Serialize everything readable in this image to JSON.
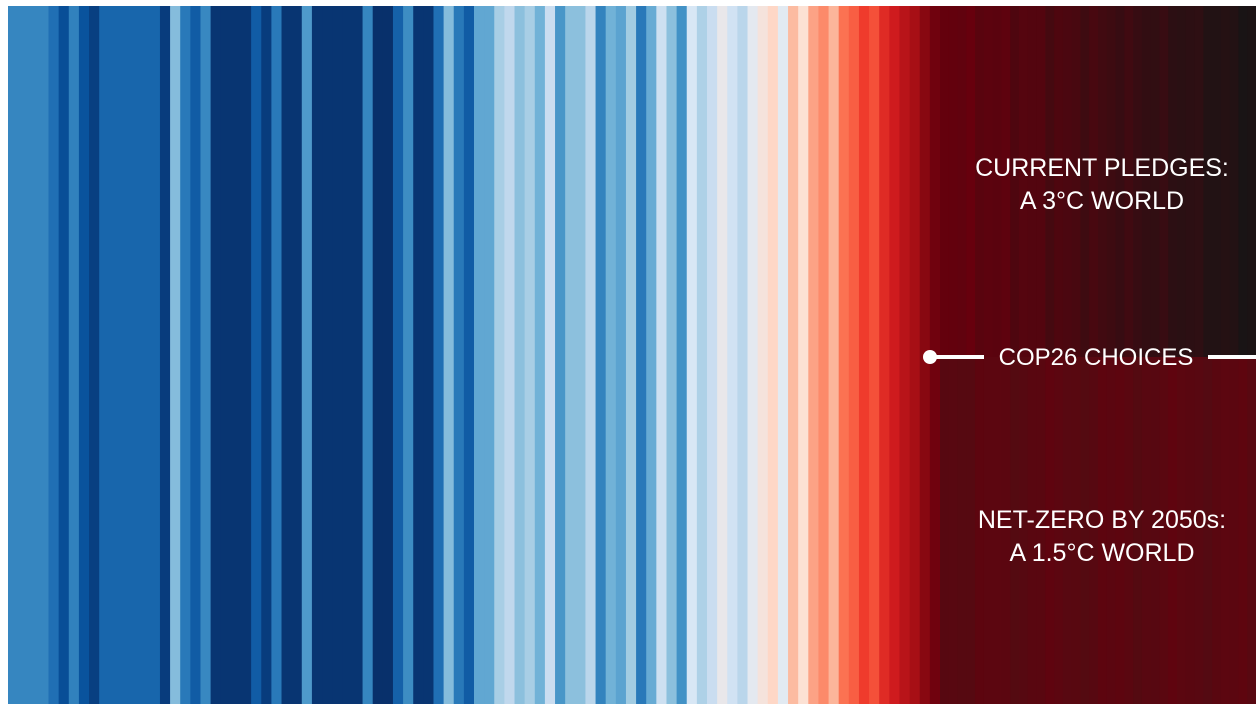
{
  "chart_data": {
    "type": "warming-stripes",
    "title": "",
    "colors": {
      "deep_blue": "#08306b",
      "light_blue": "#c6dbef",
      "light_red": "#fee0d2",
      "dark_red": "#67000d",
      "future_upper": "#151515",
      "future_lower": "#520b12",
      "background": "#ffffff",
      "text": "#ffffff"
    },
    "stripes_pattern": [
      {
        "i": 0.35,
        "n": 4
      },
      {
        "i": 0.26,
        "n": 1
      },
      {
        "i": 0.12,
        "n": 1
      },
      {
        "i": 0.33,
        "n": 1
      },
      {
        "i": 0.14,
        "n": 1
      },
      {
        "i": 0.06,
        "n": 1
      },
      {
        "i": 0.22,
        "n": 6
      },
      {
        "i": 0.05,
        "n": 1
      },
      {
        "i": 0.6,
        "n": 1
      },
      {
        "i": 0.3,
        "n": 1
      },
      {
        "i": 0.18,
        "n": 1
      },
      {
        "i": 0.36,
        "n": 1
      },
      {
        "i": 0.02,
        "n": 4
      },
      {
        "i": 0.18,
        "n": 1
      },
      {
        "i": 0.05,
        "n": 1
      },
      {
        "i": 0.3,
        "n": 1
      },
      {
        "i": 0.02,
        "n": 2
      },
      {
        "i": 0.44,
        "n": 1
      },
      {
        "i": 0.02,
        "n": 5
      },
      {
        "i": 0.35,
        "n": 1
      },
      {
        "i": 0.0,
        "n": 2
      },
      {
        "i": 0.2,
        "n": 1
      },
      {
        "i": 0.38,
        "n": 1
      },
      {
        "i": 0.02,
        "n": 2
      },
      {
        "i": 0.26,
        "n": 1
      },
      {
        "i": 0.6,
        "n": 1
      },
      {
        "i": 0.3,
        "n": 1
      },
      {
        "i": 0.18,
        "n": 1
      },
      {
        "i": 0.5,
        "n": 2
      },
      {
        "i": 0.7,
        "n": 1
      },
      {
        "i": 0.78,
        "n": 1
      },
      {
        "i": 0.62,
        "n": 1
      },
      {
        "i": 0.7,
        "n": 1
      },
      {
        "i": 0.55,
        "n": 1
      },
      {
        "i": 0.82,
        "n": 1
      },
      {
        "i": 0.42,
        "n": 1
      },
      {
        "i": 0.62,
        "n": 2
      },
      {
        "i": 0.76,
        "n": 1
      },
      {
        "i": 0.34,
        "n": 1
      },
      {
        "i": 0.55,
        "n": 1
      },
      {
        "i": 0.48,
        "n": 1
      },
      {
        "i": 0.68,
        "n": 1
      },
      {
        "i": 0.3,
        "n": 1
      },
      {
        "i": 0.52,
        "n": 1
      },
      {
        "i": 0.84,
        "n": 1
      },
      {
        "i": 0.62,
        "n": 1
      },
      {
        "i": 0.4,
        "n": 1
      },
      {
        "i": 0.9,
        "n": 1
      },
      {
        "i": 0.72,
        "n": 1
      },
      {
        "i": 0.82,
        "n": 1
      },
      {
        "i": 0.98,
        "n": 1
      },
      {
        "i": 0.86,
        "n": 1
      },
      {
        "i": 0.76,
        "n": 1
      },
      {
        "i": 0.96,
        "n": 1
      },
      {
        "i": 1.03,
        "n": 1
      },
      {
        "i": 1.1,
        "n": 1
      },
      {
        "i": 0.95,
        "n": 1
      },
      {
        "i": 1.2,
        "n": 1
      },
      {
        "i": 1.06,
        "n": 1
      },
      {
        "i": 1.28,
        "n": 1
      },
      {
        "i": 1.36,
        "n": 1
      },
      {
        "i": 1.22,
        "n": 1
      },
      {
        "i": 1.44,
        "n": 1
      },
      {
        "i": 1.5,
        "n": 1
      },
      {
        "i": 1.6,
        "n": 1
      },
      {
        "i": 1.54,
        "n": 1
      },
      {
        "i": 1.66,
        "n": 1
      },
      {
        "i": 1.72,
        "n": 1
      },
      {
        "i": 1.8,
        "n": 1
      },
      {
        "i": 1.86,
        "n": 1
      },
      {
        "i": 1.93,
        "n": 1
      },
      {
        "i": 1.98,
        "n": 1
      }
    ],
    "future_stripes": 36,
    "annotations": {
      "upper": [
        "CURRENT PLEDGES:",
        "A 3°C WORLD"
      ],
      "middle": "COP26 CHOICES",
      "lower": [
        "NET-ZERO BY 2050s:",
        "A 1.5°C WORLD"
      ]
    }
  }
}
